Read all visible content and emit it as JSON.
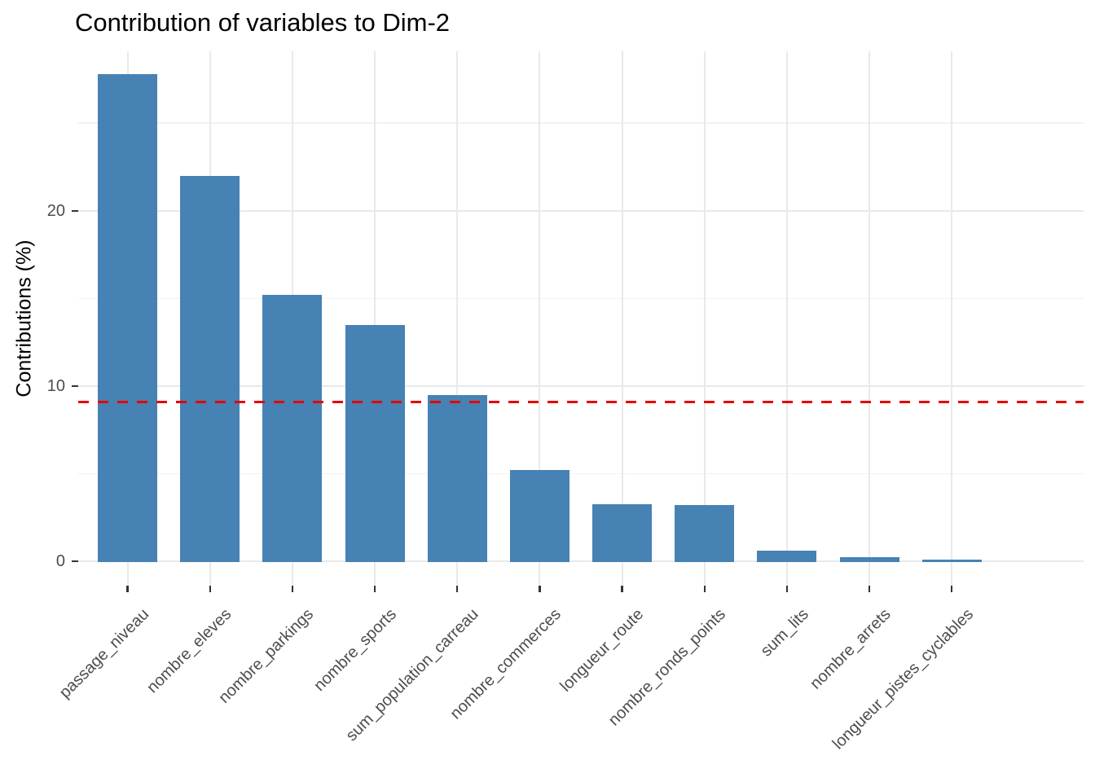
{
  "title": "Contribution of variables to Dim-2",
  "chart_data": {
    "type": "bar",
    "title": "Contribution of variables to Dim-2",
    "xlabel": "",
    "ylabel": "Contributions (%)",
    "categories": [
      "passage_niveau",
      "nombre_eleves",
      "nombre_parkings",
      "nombre_sports",
      "sum_population_carreau",
      "nombre_commerces",
      "longueur_route",
      "nombre_ronds_points",
      "sum_lits",
      "nombre_arrets",
      "longueur_pistes_cyclables"
    ],
    "values": [
      27.8,
      22.0,
      15.2,
      13.5,
      9.5,
      5.2,
      3.25,
      3.2,
      0.6,
      0.25,
      0.07
    ],
    "yticks": [
      0,
      10,
      20
    ],
    "y_minor_ticks": [
      5,
      15,
      25
    ],
    "ylim": [
      -1.4,
      29.1
    ],
    "grid": true,
    "legend": false,
    "x_label_angle_deg": 45,
    "reference_line": {
      "value": 9.09,
      "style": "dashed",
      "color": "#E60000"
    },
    "colors": {
      "bar_fill": "#4682B4",
      "grid_major": "#E9E9E9",
      "grid_minor": "#F2F2F2",
      "axis_text": "#4D4D4D",
      "axis_tick": "#333333",
      "title_text": "#000000"
    }
  }
}
